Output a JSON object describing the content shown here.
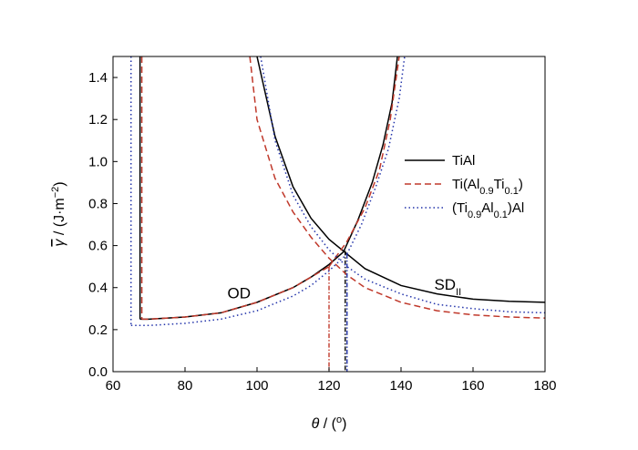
{
  "chart_data": {
    "type": "line",
    "title": "",
    "xlabel": {
      "symbol": "θ",
      "rest": " / (",
      "sup": "o",
      "close": ")"
    },
    "ylabel": {
      "symbol": "γ",
      "rest": " / (J·m",
      "sup": "−2",
      "close": ")"
    },
    "xlim": [
      60,
      180
    ],
    "ylim": [
      0.0,
      1.5
    ],
    "xticks": [
      60,
      80,
      100,
      120,
      140,
      160,
      180
    ],
    "xtick_labels": [
      "60",
      "80",
      "100",
      "120",
      "140",
      "160",
      "180"
    ],
    "yticks": [
      0.0,
      0.2,
      0.4,
      0.6,
      0.8,
      1.0,
      1.2,
      1.4
    ],
    "ytick_labels": [
      "0.0",
      "0.2",
      "0.4",
      "0.6",
      "0.8",
      "1.0",
      "1.2",
      "1.4"
    ],
    "grid": false,
    "legend_position": "right",
    "legend": [
      {
        "parts": [
          {
            "t": "TiAl"
          }
        ]
      },
      {
        "parts": [
          {
            "t": "Ti(Al"
          },
          {
            "t": "0.9",
            "sub": true
          },
          {
            "t": "Ti"
          },
          {
            "t": "0.1",
            "sub": true
          },
          {
            "t": ")"
          }
        ]
      },
      {
        "parts": [
          {
            "t": "(Ti"
          },
          {
            "t": "0.9",
            "sub": true
          },
          {
            "t": "Al"
          },
          {
            "t": "0.1",
            "sub": true
          },
          {
            "t": ")Al"
          }
        ]
      }
    ],
    "annotations": [
      {
        "parts": [
          {
            "t": "OD"
          }
        ],
        "x": 95,
        "y": 0.35
      },
      {
        "parts": [
          {
            "t": "SD"
          },
          {
            "t": "II",
            "sub": true
          }
        ],
        "x": 153,
        "y": 0.39
      }
    ],
    "series": [
      {
        "style": "solid",
        "color": "#000000",
        "od": {
          "x": [
            67.5,
            70,
            80,
            90,
            100,
            110,
            115,
            120,
            124
          ],
          "y": [
            0.25,
            0.25,
            0.26,
            0.28,
            0.33,
            0.4,
            0.45,
            0.51,
            0.57
          ]
        },
        "od_vertical_x": 67.5,
        "sd": {
          "x": [
            100,
            105,
            110,
            115,
            120,
            125,
            130,
            140,
            150,
            160,
            170,
            180
          ],
          "y": [
            1.5,
            1.12,
            0.88,
            0.73,
            0.63,
            0.56,
            0.49,
            0.41,
            0.37,
            0.345,
            0.335,
            0.33
          ]
        },
        "od_rise": {
          "x": [
            124,
            128,
            132,
            135,
            137.5,
            139
          ],
          "y": [
            0.57,
            0.72,
            0.9,
            1.08,
            1.28,
            1.5
          ]
        },
        "intersection": {
          "x": 124.5,
          "y": 0.575
        }
      },
      {
        "style": "dashed",
        "color": "#c0392b",
        "od": {
          "x": [
            68,
            70,
            80,
            90,
            100,
            110,
            115,
            120
          ],
          "y": [
            0.25,
            0.25,
            0.26,
            0.28,
            0.33,
            0.4,
            0.45,
            0.5
          ]
        },
        "od_vertical_x": 68,
        "sd": {
          "x": [
            98,
            100,
            105,
            110,
            115,
            120,
            125,
            130,
            140,
            150,
            160,
            170,
            180
          ],
          "y": [
            1.5,
            1.2,
            0.92,
            0.76,
            0.64,
            0.54,
            0.46,
            0.4,
            0.33,
            0.29,
            0.27,
            0.26,
            0.255
          ]
        },
        "od_rise": {
          "x": [
            120,
            125,
            130,
            134,
            137,
            139.5
          ],
          "y": [
            0.5,
            0.62,
            0.78,
            0.96,
            1.2,
            1.5
          ]
        },
        "intersection": {
          "x": 120,
          "y": 0.5
        }
      },
      {
        "style": "dotted",
        "color": "#2233aa",
        "od": {
          "x": [
            65,
            70,
            80,
            90,
            100,
            110,
            115,
            120,
            125
          ],
          "y": [
            0.22,
            0.22,
            0.23,
            0.25,
            0.29,
            0.36,
            0.41,
            0.48,
            0.56
          ]
        },
        "od_vertical_x": 65,
        "sd": {
          "x": [
            101,
            105,
            110,
            115,
            120,
            125,
            130,
            140,
            150,
            160,
            170,
            180
          ],
          "y": [
            1.5,
            1.1,
            0.84,
            0.69,
            0.58,
            0.5,
            0.44,
            0.37,
            0.32,
            0.3,
            0.285,
            0.28
          ]
        },
        "od_rise": {
          "x": [
            125,
            129,
            133,
            136.5,
            139.5,
            141
          ],
          "y": [
            0.56,
            0.7,
            0.88,
            1.06,
            1.3,
            1.5
          ]
        },
        "intersection": {
          "x": 125,
          "y": 0.56
        }
      }
    ]
  }
}
